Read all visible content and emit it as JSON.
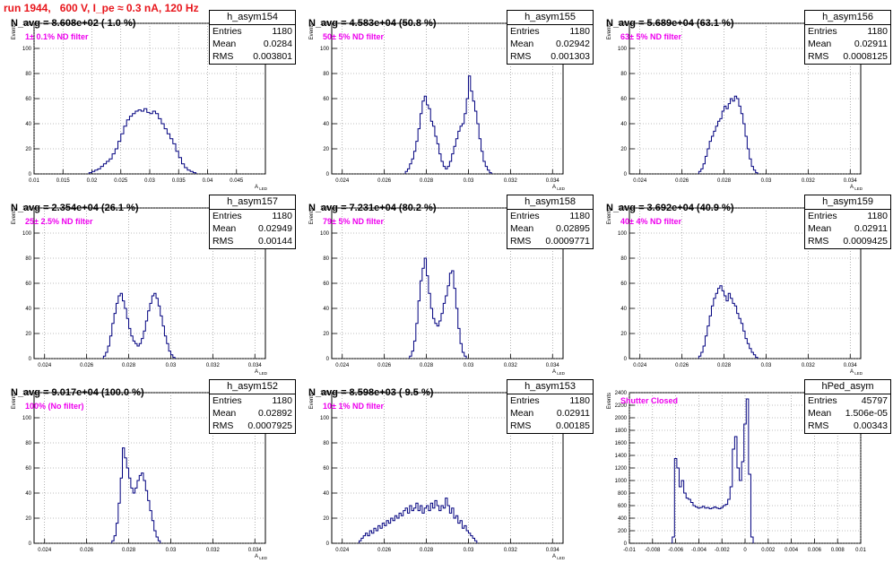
{
  "header": {
    "title": "run 1944,   600 V, I_pe ≈ 0.3 nA, 120 Hz"
  },
  "colors": {
    "title": "#e8161c",
    "histogram_line": "#00007f",
    "filter_text": "#ee00ee",
    "grid": "#808080"
  },
  "chart_data": [
    {
      "type": "histogram",
      "panel": "h_asym154",
      "stats": {
        "name": "h_asym154",
        "entries": "1180",
        "mean": "0.0284",
        "rms": "0.003801"
      },
      "navg_label": "N_avg = 8.608e+02 ( 1.0 %)",
      "filter_label": "1± 0.1% ND filter",
      "ylabel": "Events",
      "xlabel": "A_LED",
      "xlim": [
        0.01,
        0.05
      ],
      "ylim": [
        0,
        120
      ],
      "xticks": [
        0.01,
        0.015,
        0.02,
        0.025,
        0.03,
        0.035,
        0.04,
        0.045
      ],
      "xtick_labels": [
        "0.01",
        "0.015",
        "0.02",
        "0.025",
        "0.03",
        "0.035",
        "0.04",
        "0.045"
      ],
      "yticks": [
        0,
        20,
        40,
        60,
        80,
        100,
        120
      ],
      "ytick_labels": [
        "0",
        "20",
        "40",
        "60",
        "80",
        "100",
        "120"
      ],
      "bins": {
        "start": 0.0195,
        "width": 0.0005,
        "counts": [
          1,
          2,
          3,
          4,
          6,
          8,
          10,
          12,
          16,
          20,
          26,
          32,
          38,
          43,
          46,
          48,
          50,
          51,
          50,
          52,
          49,
          48,
          50,
          48,
          44,
          40,
          36,
          32,
          28,
          24,
          18,
          13,
          8,
          5,
          3,
          2,
          1
        ]
      }
    },
    {
      "type": "histogram",
      "panel": "h_asym155",
      "stats": {
        "name": "h_asym155",
        "entries": "1180",
        "mean": "0.02942",
        "rms": "0.001303"
      },
      "navg_label": "N_avg = 4.583e+04 (50.8 %)",
      "filter_label": "50± 5% ND filter",
      "ylabel": "Events",
      "xlabel": "A_LED",
      "xlim": [
        0.0235,
        0.0345
      ],
      "ylim": [
        0,
        120
      ],
      "xticks": [
        0.024,
        0.026,
        0.028,
        0.03,
        0.032,
        0.034
      ],
      "xtick_labels": [
        "0.024",
        "0.026",
        "0.028",
        "0.03",
        "0.032",
        "0.034"
      ],
      "yticks": [
        0,
        20,
        40,
        60,
        80,
        100,
        120
      ],
      "ytick_labels": [
        "0",
        "20",
        "40",
        "60",
        "80",
        "100",
        "120"
      ],
      "bins": {
        "start": 0.027,
        "width": 0.0001,
        "counts": [
          2,
          4,
          8,
          12,
          18,
          26,
          36,
          48,
          58,
          62,
          55,
          52,
          42,
          38,
          30,
          24,
          16,
          10,
          6,
          4,
          6,
          10,
          16,
          22,
          28,
          34,
          38,
          40,
          48,
          60,
          78,
          66,
          58,
          50,
          40,
          28,
          18,
          10,
          6,
          3,
          1
        ]
      }
    },
    {
      "type": "histogram",
      "panel": "h_asym156",
      "stats": {
        "name": "h_asym156",
        "entries": "1180",
        "mean": "0.02911",
        "rms": "0.0008125"
      },
      "navg_label": "N_avg = 5.689e+04 (63.1 %)",
      "filter_label": "63± 5% ND filter",
      "ylabel": "Events",
      "xlabel": "A_LED",
      "xlim": [
        0.0235,
        0.0345
      ],
      "ylim": [
        0,
        120
      ],
      "xticks": [
        0.024,
        0.026,
        0.028,
        0.03,
        0.032,
        0.034
      ],
      "xtick_labels": [
        "0.024",
        "0.026",
        "0.028",
        "0.03",
        "0.032",
        "0.034"
      ],
      "yticks": [
        0,
        20,
        40,
        60,
        80,
        100,
        120
      ],
      "ytick_labels": [
        "0",
        "20",
        "40",
        "60",
        "80",
        "100",
        "120"
      ],
      "bins": {
        "start": 0.0268,
        "width": 0.0001,
        "counts": [
          2,
          4,
          8,
          14,
          20,
          26,
          30,
          34,
          38,
          42,
          44,
          50,
          54,
          52,
          56,
          60,
          58,
          62,
          60,
          54,
          48,
          40,
          30,
          20,
          12,
          6,
          3,
          1
        ]
      }
    },
    {
      "type": "histogram",
      "panel": "h_asym157",
      "stats": {
        "name": "h_asym157",
        "entries": "1180",
        "mean": "0.02949",
        "rms": "0.00144"
      },
      "navg_label": "N_avg = 2.354e+04 (26.1 %)",
      "filter_label": "25± 2.5% ND filter",
      "ylabel": "Events",
      "xlabel": "A_LED",
      "xlim": [
        0.0235,
        0.0345
      ],
      "ylim": [
        0,
        120
      ],
      "xticks": [
        0.024,
        0.026,
        0.028,
        0.03,
        0.032,
        0.034
      ],
      "xtick_labels": [
        "0.024",
        "0.026",
        "0.028",
        "0.03",
        "0.032",
        "0.034"
      ],
      "yticks": [
        0,
        20,
        40,
        60,
        80,
        100,
        120
      ],
      "ytick_labels": [
        "0",
        "20",
        "40",
        "60",
        "80",
        "100",
        "120"
      ],
      "bins": {
        "start": 0.0268,
        "width": 0.0001,
        "counts": [
          2,
          5,
          10,
          18,
          28,
          36,
          44,
          50,
          52,
          46,
          40,
          32,
          24,
          18,
          14,
          12,
          10,
          12,
          16,
          22,
          30,
          38,
          44,
          50,
          52,
          48,
          42,
          34,
          26,
          18,
          12,
          6,
          3,
          1
        ]
      }
    },
    {
      "type": "histogram",
      "panel": "h_asym158",
      "stats": {
        "name": "h_asym158",
        "entries": "1180",
        "mean": "0.02895",
        "rms": "0.0009771"
      },
      "navg_label": "N_avg = 7.231e+04 (80.2 %)",
      "filter_label": "79± 5% ND filter",
      "ylabel": "Events",
      "xlabel": "A_LED",
      "xlim": [
        0.0235,
        0.0345
      ],
      "ylim": [
        0,
        120
      ],
      "xticks": [
        0.024,
        0.026,
        0.028,
        0.03,
        0.032,
        0.034
      ],
      "xtick_labels": [
        "0.024",
        "0.026",
        "0.028",
        "0.03",
        "0.032",
        "0.034"
      ],
      "yticks": [
        0,
        20,
        40,
        60,
        80,
        100,
        120
      ],
      "ytick_labels": [
        "0",
        "20",
        "40",
        "60",
        "80",
        "100",
        "120"
      ],
      "bins": {
        "start": 0.0272,
        "width": 0.0001,
        "counts": [
          2,
          6,
          14,
          28,
          46,
          62,
          72,
          80,
          66,
          52,
          40,
          32,
          28,
          26,
          30,
          36,
          44,
          50,
          58,
          68,
          70,
          56,
          40,
          24,
          12,
          5,
          2
        ]
      }
    },
    {
      "type": "histogram",
      "panel": "h_asym159",
      "stats": {
        "name": "h_asym159",
        "entries": "1180",
        "mean": "0.02911",
        "rms": "0.0009425"
      },
      "navg_label": "N_avg = 3.692e+04 (40.9 %)",
      "filter_label": "40± 4% ND filter",
      "ylabel": "Events",
      "xlabel": "A_LED",
      "xlim": [
        0.0235,
        0.0345
      ],
      "ylim": [
        0,
        120
      ],
      "xticks": [
        0.024,
        0.026,
        0.028,
        0.03,
        0.032,
        0.034
      ],
      "xtick_labels": [
        "0.024",
        "0.026",
        "0.028",
        "0.03",
        "0.032",
        "0.034"
      ],
      "yticks": [
        0,
        20,
        40,
        60,
        80,
        100,
        120
      ],
      "ytick_labels": [
        "0",
        "20",
        "40",
        "60",
        "80",
        "100",
        "120"
      ],
      "bins": {
        "start": 0.0268,
        "width": 0.0001,
        "counts": [
          2,
          5,
          10,
          18,
          26,
          34,
          42,
          48,
          52,
          56,
          58,
          54,
          50,
          46,
          52,
          48,
          44,
          42,
          36,
          32,
          28,
          22,
          16,
          12,
          8,
          5,
          3,
          1
        ]
      }
    },
    {
      "type": "histogram",
      "panel": "h_asym152",
      "stats": {
        "name": "h_asym152",
        "entries": "1180",
        "mean": "0.02892",
        "rms": "0.0007925"
      },
      "navg_label": "N_avg = 9.017e+04 (100.0 %)",
      "filter_label": "100% (No filter)",
      "ylabel": "Events",
      "xlabel": "A_LED",
      "xlim": [
        0.0235,
        0.0345
      ],
      "ylim": [
        0,
        120
      ],
      "xticks": [
        0.024,
        0.026,
        0.028,
        0.03,
        0.032,
        0.034
      ],
      "xtick_labels": [
        "0.024",
        "0.026",
        "0.028",
        "0.03",
        "0.032",
        "0.034"
      ],
      "yticks": [
        0,
        20,
        40,
        60,
        80,
        100,
        120
      ],
      "ytick_labels": [
        "0",
        "20",
        "40",
        "60",
        "80",
        "100",
        "120"
      ],
      "bins": {
        "start": 0.0272,
        "width": 0.0001,
        "counts": [
          2,
          6,
          16,
          32,
          52,
          76,
          68,
          60,
          52,
          44,
          40,
          44,
          50,
          54,
          56,
          50,
          42,
          34,
          26,
          18,
          10,
          5,
          2
        ]
      }
    },
    {
      "type": "histogram",
      "panel": "h_asym153",
      "stats": {
        "name": "h_asym153",
        "entries": "1180",
        "mean": "0.02911",
        "rms": "0.00185"
      },
      "navg_label": "N_avg = 8.598e+03 ( 9.5 %)",
      "filter_label": "10± 1% ND filter",
      "ylabel": "Events",
      "xlabel": "A_LED",
      "xlim": [
        0.0235,
        0.0345
      ],
      "ylim": [
        0,
        120
      ],
      "xticks": [
        0.024,
        0.026,
        0.028,
        0.03,
        0.032,
        0.034
      ],
      "xtick_labels": [
        "0.024",
        "0.026",
        "0.028",
        "0.03",
        "0.032",
        "0.034"
      ],
      "yticks": [
        0,
        20,
        40,
        60,
        80,
        100,
        120
      ],
      "ytick_labels": [
        "0",
        "20",
        "40",
        "60",
        "80",
        "100",
        "120"
      ],
      "bins": {
        "start": 0.0248,
        "width": 0.0001,
        "counts": [
          2,
          4,
          6,
          8,
          6,
          10,
          8,
          12,
          10,
          14,
          12,
          16,
          14,
          18,
          16,
          20,
          18,
          22,
          20,
          24,
          22,
          26,
          28,
          24,
          30,
          26,
          28,
          32,
          26,
          30,
          24,
          28,
          30,
          26,
          32,
          28,
          34,
          30,
          26,
          30,
          28,
          36,
          30,
          24,
          28,
          20,
          22,
          16,
          18,
          12,
          14,
          10,
          8,
          6,
          4,
          2
        ]
      }
    },
    {
      "type": "histogram",
      "panel": "hPed_asym",
      "stats": {
        "name": "hPed_asym",
        "entries": "45797",
        "mean": "1.506e-05",
        "rms": "0.00343"
      },
      "navg_label": "",
      "filter_label": "Shutter Closed",
      "ylabel": "Events",
      "xlabel": "",
      "xlim": [
        -0.01,
        0.01
      ],
      "ylim": [
        0,
        2400
      ],
      "xticks": [
        -0.01,
        -0.008,
        -0.006,
        -0.004,
        -0.002,
        0,
        0.002,
        0.004,
        0.006,
        0.008,
        0.01
      ],
      "xtick_labels": [
        "-0.01",
        "-0.008",
        "-0.006",
        "-0.004",
        "-0.002",
        "0",
        "0.002",
        "0.004",
        "0.006",
        "0.008",
        "0.01"
      ],
      "yticks": [
        0,
        200,
        400,
        600,
        800,
        1000,
        1200,
        1400,
        1600,
        1800,
        2000,
        2200,
        2400
      ],
      "ytick_labels": [
        "0",
        "200",
        "400",
        "600",
        "800",
        "1000",
        "1200",
        "1400",
        "1600",
        "1800",
        "2000",
        "2200",
        "2400"
      ],
      "bins": {
        "start": -0.0063,
        "width": 0.0002,
        "counts": [
          100,
          1350,
          1200,
          900,
          1000,
          800,
          720,
          700,
          650,
          600,
          580,
          560,
          570,
          590,
          560,
          570,
          550,
          560,
          580,
          560,
          550,
          570,
          600,
          620,
          700,
          900,
          1500,
          1700,
          1200,
          1000,
          1300,
          1900,
          2300,
          1100,
          100
        ]
      }
    }
  ]
}
